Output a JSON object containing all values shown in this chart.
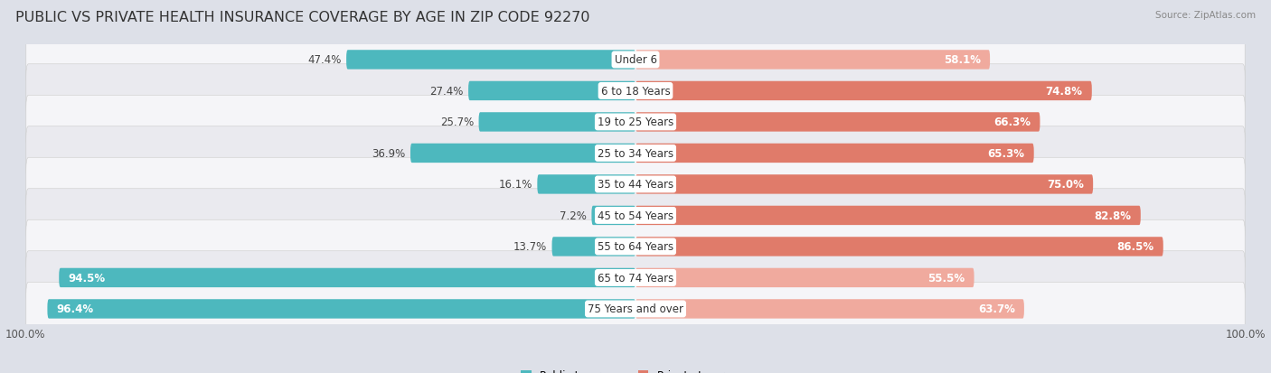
{
  "title": "PUBLIC VS PRIVATE HEALTH INSURANCE COVERAGE BY AGE IN ZIP CODE 92270",
  "source": "Source: ZipAtlas.com",
  "categories": [
    "Under 6",
    "6 to 18 Years",
    "19 to 25 Years",
    "25 to 34 Years",
    "35 to 44 Years",
    "45 to 54 Years",
    "55 to 64 Years",
    "65 to 74 Years",
    "75 Years and over"
  ],
  "public_values": [
    47.4,
    27.4,
    25.7,
    36.9,
    16.1,
    7.2,
    13.7,
    94.5,
    96.4
  ],
  "private_values": [
    58.1,
    74.8,
    66.3,
    65.3,
    75.0,
    82.8,
    86.5,
    55.5,
    63.7
  ],
  "public_color": "#4db8be",
  "private_color_strong": "#e07b6a",
  "private_color_weak": "#f0aa9e",
  "public_label": "Public Insurance",
  "private_label": "Private Insurance",
  "background_color": "#dde0e8",
  "row_color_a": "#f5f5f8",
  "row_color_b": "#eaeaef",
  "title_color": "#333333",
  "max_value": 100.0,
  "title_fontsize": 11.5,
  "label_fontsize": 8.5,
  "value_fontsize": 8.5,
  "axis_fontsize": 8.5,
  "private_strong_threshold": 65.0
}
